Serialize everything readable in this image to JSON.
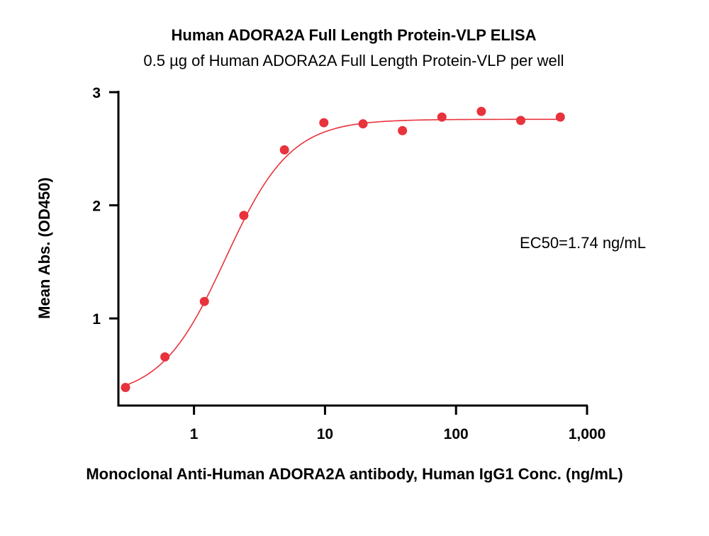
{
  "chart_data": {
    "type": "scatter",
    "title": "Human ADORA2A Full Length Protein-VLP ELISA",
    "subtitle": "0.5 µg of Human ADORA2A Full Length Protein-VLP per well",
    "xlabel": "Monoclonal Anti-Human ADORA2A antibody, Human IgG1 Conc. (ng/mL)",
    "ylabel": "Mean Abs. (OD450)",
    "x_scale": "log",
    "xlim": [
      0.3,
      1000
    ],
    "ylim": [
      0.23,
      3
    ],
    "x_ticks": [
      {
        "value": 1,
        "label": "1"
      },
      {
        "value": 10,
        "label": "10"
      },
      {
        "value": 100,
        "label": "100"
      },
      {
        "value": 1000,
        "label": "1,000"
      }
    ],
    "y_ticks": [
      {
        "value": 1,
        "label": "1"
      },
      {
        "value": 2,
        "label": "2"
      },
      {
        "value": 3,
        "label": "3"
      }
    ],
    "grid": false,
    "series": [
      {
        "x": [
          0.3,
          0.6,
          1.2,
          2.4,
          4.9,
          9.8,
          19.5,
          39,
          78,
          156,
          312,
          625
        ],
        "y": [
          0.39,
          0.66,
          1.15,
          1.91,
          2.49,
          2.73,
          2.72,
          2.66,
          2.78,
          2.83,
          2.75,
          2.78
        ],
        "color": "#e8323c"
      }
    ],
    "fit_curve": {
      "model": "4PL",
      "bottom": 0.3,
      "top": 2.76,
      "ec50": 1.74,
      "hill": 1.75,
      "color": "#e8323c"
    },
    "annotations": [
      {
        "text": "EC50=1.74 ng/mL"
      }
    ]
  }
}
